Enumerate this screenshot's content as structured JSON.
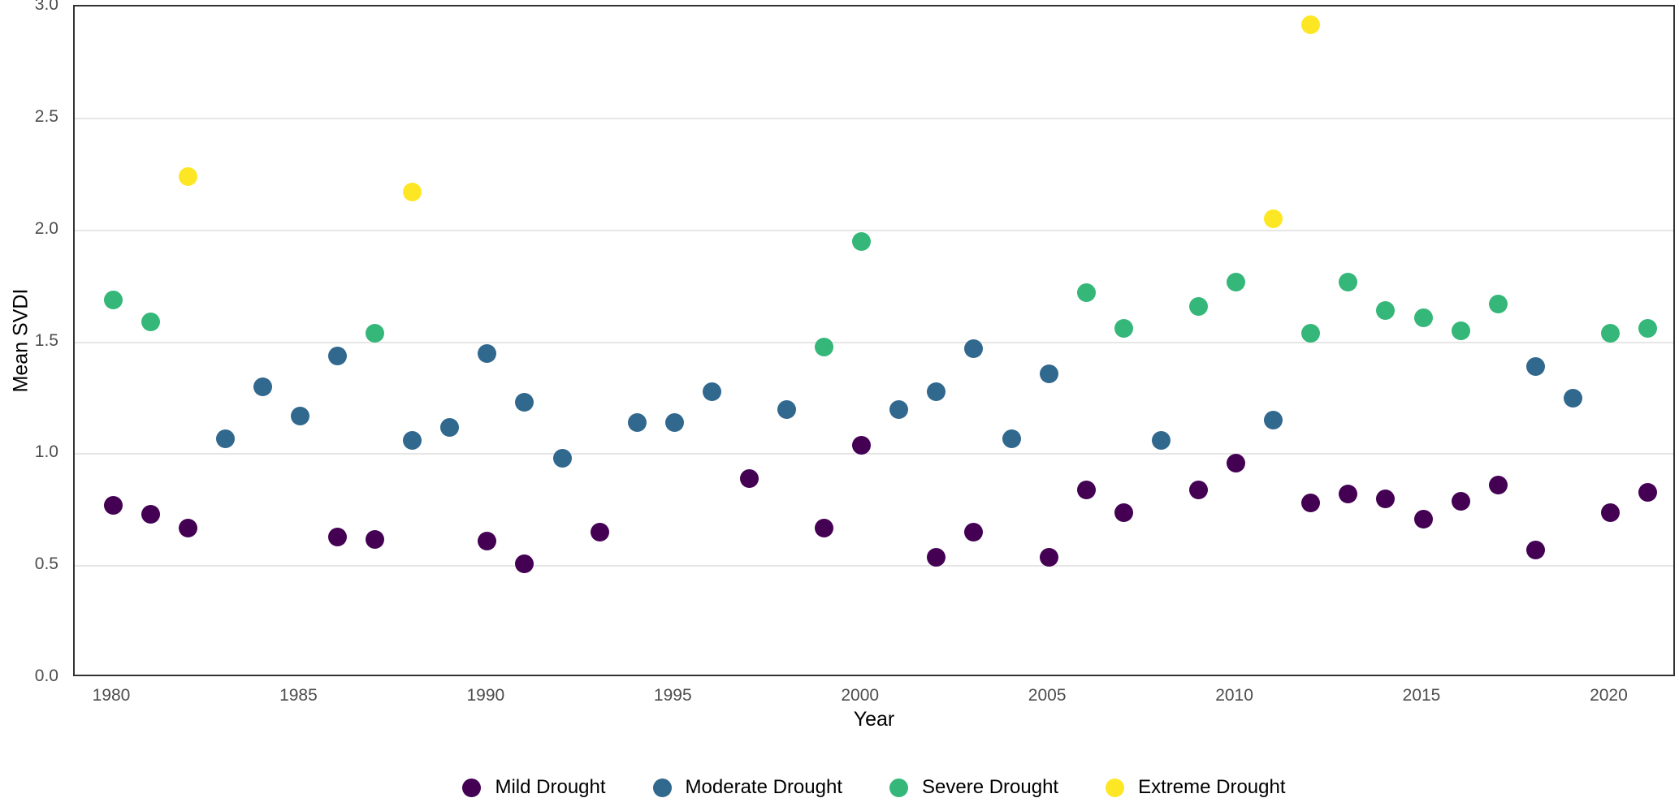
{
  "chart_data": {
    "type": "scatter",
    "title": "",
    "xlabel": "Year",
    "ylabel": "Mean SVDI",
    "xlim": [
      1978.98,
      2021.77
    ],
    "ylim": [
      0,
      3
    ],
    "grid": "horizontal-major-only",
    "panel_border": true,
    "legend_position": "bottom-center",
    "x_ticks": [
      {
        "v": 1980,
        "label": "1980"
      },
      {
        "v": 1985,
        "label": "1985"
      },
      {
        "v": 1990,
        "label": "1990"
      },
      {
        "v": 1995,
        "label": "1995"
      },
      {
        "v": 2000,
        "label": "2000"
      },
      {
        "v": 2005,
        "label": "2005"
      },
      {
        "v": 2010,
        "label": "2010"
      },
      {
        "v": 2015,
        "label": "2015"
      },
      {
        "v": 2020,
        "label": "2020"
      }
    ],
    "y_ticks": [
      {
        "v": 0.0,
        "label": "0.0"
      },
      {
        "v": 0.5,
        "label": "0.5"
      },
      {
        "v": 1.0,
        "label": "1.0"
      },
      {
        "v": 1.5,
        "label": "1.5"
      },
      {
        "v": 2.0,
        "label": "2.0"
      },
      {
        "v": 2.5,
        "label": "2.5"
      },
      {
        "v": 3.0,
        "label": "3.0"
      }
    ],
    "series": [
      {
        "name": "Mild Drought",
        "color": "#440154",
        "points": [
          [
            1980,
            0.77
          ],
          [
            1981,
            0.73
          ],
          [
            1982,
            0.67
          ],
          [
            1986,
            0.63
          ],
          [
            1987,
            0.62
          ],
          [
            1990,
            0.61
          ],
          [
            1991,
            0.51
          ],
          [
            1993,
            0.65
          ],
          [
            1997,
            0.89
          ],
          [
            1999,
            0.67
          ],
          [
            2000,
            1.04
          ],
          [
            2002,
            0.54
          ],
          [
            2003,
            0.65
          ],
          [
            2005,
            0.54
          ],
          [
            2006,
            0.84
          ],
          [
            2007,
            0.74
          ],
          [
            2009,
            0.84
          ],
          [
            2010,
            0.96
          ],
          [
            2012,
            0.78
          ],
          [
            2013,
            0.82
          ],
          [
            2014,
            0.8
          ],
          [
            2015,
            0.71
          ],
          [
            2016,
            0.79
          ],
          [
            2017,
            0.86
          ],
          [
            2018,
            0.57
          ],
          [
            2020,
            0.74
          ],
          [
            2021,
            0.83
          ]
        ]
      },
      {
        "name": "Moderate Drought",
        "color": "#31688e",
        "points": [
          [
            1983,
            1.07
          ],
          [
            1984,
            1.3
          ],
          [
            1985,
            1.17
          ],
          [
            1986,
            1.44
          ],
          [
            1988,
            1.06
          ],
          [
            1989,
            1.12
          ],
          [
            1990,
            1.45
          ],
          [
            1991,
            1.23
          ],
          [
            1992,
            0.98
          ],
          [
            1994,
            1.14
          ],
          [
            1995,
            1.14
          ],
          [
            1996,
            1.28
          ],
          [
            1998,
            1.2
          ],
          [
            2001,
            1.2
          ],
          [
            2002,
            1.28
          ],
          [
            2003,
            1.47
          ],
          [
            2004,
            1.07
          ],
          [
            2005,
            1.36
          ],
          [
            2008,
            1.06
          ],
          [
            2011,
            1.15
          ],
          [
            2018,
            1.39
          ],
          [
            2019,
            1.25
          ]
        ]
      },
      {
        "name": "Severe Drought",
        "color": "#35b779",
        "points": [
          [
            1980,
            1.69
          ],
          [
            1981,
            1.59
          ],
          [
            1987,
            1.54
          ],
          [
            1999,
            1.48
          ],
          [
            2000,
            1.95
          ],
          [
            2006,
            1.72
          ],
          [
            2007,
            1.56
          ],
          [
            2009,
            1.66
          ],
          [
            2010,
            1.77
          ],
          [
            2012,
            1.54
          ],
          [
            2013,
            1.77
          ],
          [
            2014,
            1.64
          ],
          [
            2015,
            1.61
          ],
          [
            2016,
            1.55
          ],
          [
            2017,
            1.67
          ],
          [
            2020,
            1.54
          ],
          [
            2021,
            1.56
          ]
        ]
      },
      {
        "name": "Extreme Drought",
        "color": "#fde725",
        "points": [
          [
            1982,
            2.24
          ],
          [
            1988,
            2.17
          ],
          [
            2011,
            2.05
          ],
          [
            2012,
            2.92
          ]
        ]
      }
    ]
  }
}
